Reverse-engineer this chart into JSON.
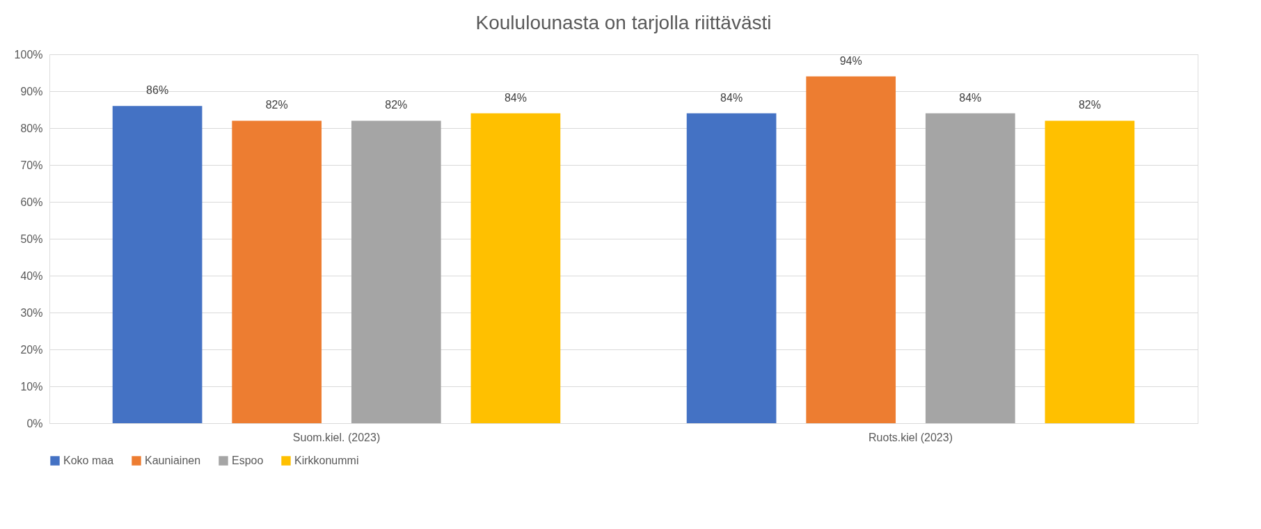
{
  "chart_data": {
    "type": "bar",
    "title": "Koululounasta on tarjolla riittävästi",
    "categories": [
      "Suom.kiel. (2023)",
      "Ruots.kiel (2023)"
    ],
    "series": [
      {
        "name": "Koko maa",
        "color": "#4472c4",
        "values": [
          86,
          84
        ],
        "value_labels": [
          "86%",
          "84%"
        ]
      },
      {
        "name": "Kauniainen",
        "color": "#ed7d31",
        "values": [
          82,
          94
        ],
        "value_labels": [
          "82%",
          "94%"
        ]
      },
      {
        "name": "Espoo",
        "color": "#a5a5a5",
        "values": [
          82,
          84
        ],
        "value_labels": [
          "82%",
          "84%"
        ]
      },
      {
        "name": "Kirkkonummi",
        "color": "#ffc000",
        "values": [
          84,
          82
        ],
        "value_labels": [
          "84%",
          "82%"
        ]
      }
    ],
    "ylim": [
      0,
      100
    ],
    "yticks": [
      {
        "value": 0,
        "label": "0%"
      },
      {
        "value": 10,
        "label": "10%"
      },
      {
        "value": 20,
        "label": "20%"
      },
      {
        "value": 30,
        "label": "30%"
      },
      {
        "value": 40,
        "label": "40%"
      },
      {
        "value": 50,
        "label": "50%"
      },
      {
        "value": 60,
        "label": "60%"
      },
      {
        "value": 70,
        "label": "70%"
      },
      {
        "value": 80,
        "label": "80%"
      },
      {
        "value": 90,
        "label": "90%"
      },
      {
        "value": 100,
        "label": "100%"
      }
    ],
    "grid": "y",
    "legend": "bottom"
  }
}
